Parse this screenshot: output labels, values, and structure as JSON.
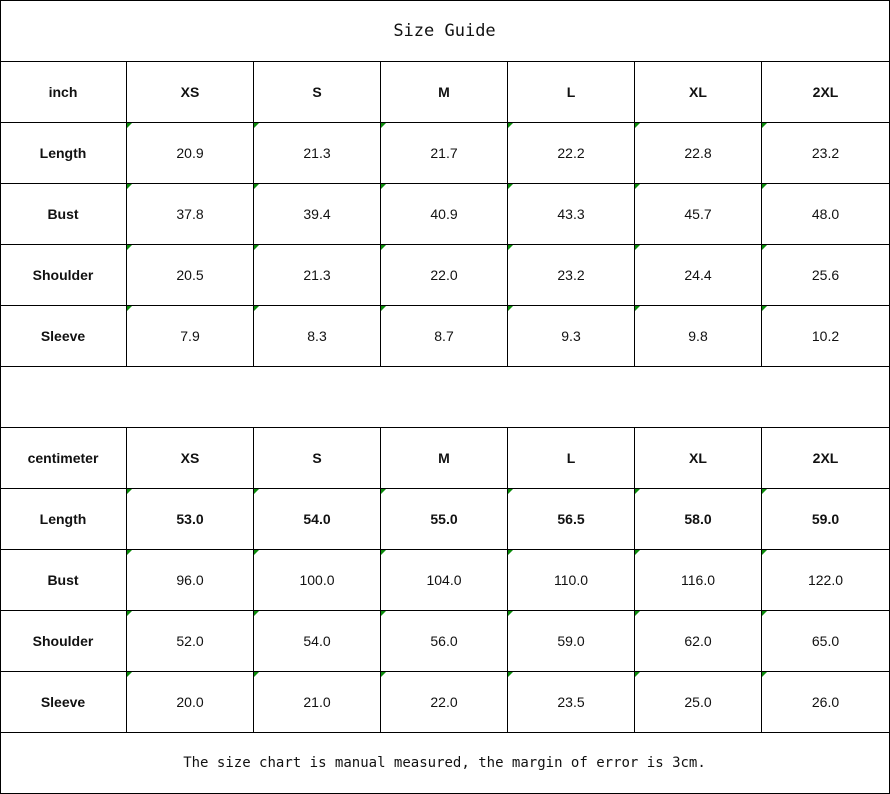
{
  "title": "Size Guide",
  "sizes": [
    "XS",
    "S",
    "M",
    "L",
    "XL",
    "2XL"
  ],
  "tables": [
    {
      "unit": "inch",
      "rows": [
        {
          "label": "Length",
          "values": [
            "20.9",
            "21.3",
            "21.7",
            "22.2",
            "22.8",
            "23.2"
          ],
          "bold": false
        },
        {
          "label": "Bust",
          "values": [
            "37.8",
            "39.4",
            "40.9",
            "43.3",
            "45.7",
            "48.0"
          ],
          "bold": false
        },
        {
          "label": "Shoulder",
          "values": [
            "20.5",
            "21.3",
            "22.0",
            "23.2",
            "24.4",
            "25.6"
          ],
          "bold": false
        },
        {
          "label": "Sleeve",
          "values": [
            "7.9",
            "8.3",
            "8.7",
            "9.3",
            "9.8",
            "10.2"
          ],
          "bold": false
        }
      ]
    },
    {
      "unit": "centimeter",
      "rows": [
        {
          "label": "Length",
          "values": [
            "53.0",
            "54.0",
            "55.0",
            "56.5",
            "58.0",
            "59.0"
          ],
          "bold": true
        },
        {
          "label": "Bust",
          "values": [
            "96.0",
            "100.0",
            "104.0",
            "110.0",
            "116.0",
            "122.0"
          ],
          "bold": false
        },
        {
          "label": "Shoulder",
          "values": [
            "52.0",
            "54.0",
            "56.0",
            "59.0",
            "62.0",
            "65.0"
          ],
          "bold": false
        },
        {
          "label": "Sleeve",
          "values": [
            "20.0",
            "21.0",
            "22.0",
            "23.5",
            "25.0",
            "26.0"
          ],
          "bold": false
        }
      ]
    }
  ],
  "note": "The size chart is manual measured, the margin of error is 3cm.",
  "colors": {
    "grid": "#000000",
    "marker": "#0a8a0a"
  }
}
